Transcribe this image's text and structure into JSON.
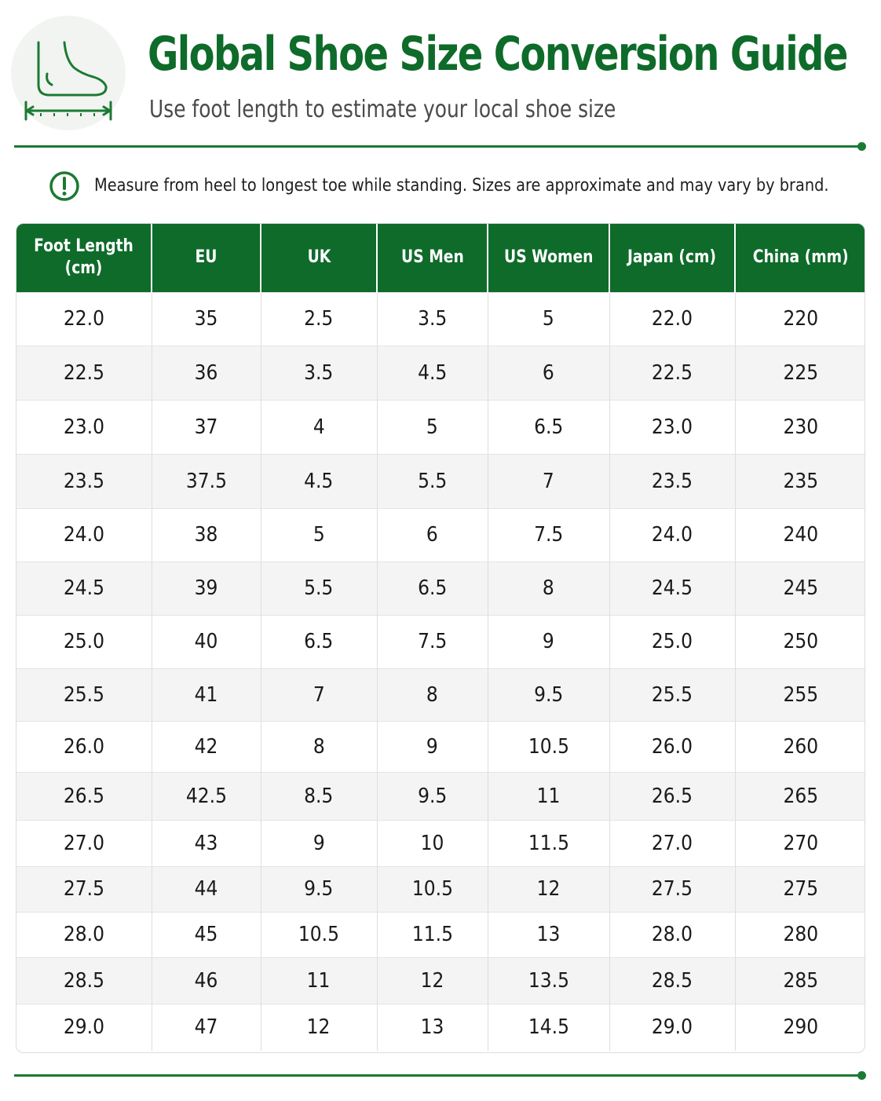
{
  "header": {
    "title": "Global Shoe Size Conversion Guide",
    "subtitle": "Use foot length to estimate your local shoe size",
    "logo_icon": "foot-measure-icon"
  },
  "note": {
    "icon": "info-exclamation-icon",
    "text": "Measure from heel to longest toe while standing. Sizes are approximate and may vary by brand."
  },
  "colors": {
    "brand_green": "#0e6b2a",
    "row_stripe": "#f4f4f4"
  },
  "table": {
    "headers": [
      "Foot Length (cm)",
      "EU",
      "UK",
      "US Men",
      "US Women",
      "Japan (cm)",
      "China (mm)"
    ],
    "rows": [
      [
        "22.0",
        "35",
        "2.5",
        "3.5",
        "5",
        "22.0",
        "220"
      ],
      [
        "22.5",
        "36",
        "3.5",
        "4.5",
        "6",
        "22.5",
        "225"
      ],
      [
        "23.0",
        "37",
        "4",
        "5",
        "6.5",
        "23.0",
        "230"
      ],
      [
        "23.5",
        "37.5",
        "4.5",
        "5.5",
        "7",
        "23.5",
        "235"
      ],
      [
        "24.0",
        "38",
        "5",
        "6",
        "7.5",
        "24.0",
        "240"
      ],
      [
        "24.5",
        "39",
        "5.5",
        "6.5",
        "8",
        "24.5",
        "245"
      ],
      [
        "25.0",
        "40",
        "6.5",
        "7.5",
        "9",
        "25.0",
        "250"
      ],
      [
        "25.5",
        "41",
        "7",
        "8",
        "9.5",
        "25.5",
        "255"
      ],
      [
        "26.0",
        "42",
        "8",
        "9",
        "10.5",
        "26.0",
        "260"
      ],
      [
        "26.5",
        "42.5",
        "8.5",
        "9.5",
        "11",
        "26.5",
        "265"
      ],
      [
        "27.0",
        "43",
        "9",
        "10",
        "11.5",
        "27.0",
        "270"
      ],
      [
        "27.5",
        "44",
        "9.5",
        "10.5",
        "12",
        "27.5",
        "275"
      ],
      [
        "28.0",
        "45",
        "10.5",
        "11.5",
        "13",
        "28.0",
        "280"
      ],
      [
        "28.5",
        "46",
        "11",
        "12",
        "13.5",
        "28.5",
        "285"
      ],
      [
        "29.0",
        "47",
        "12",
        "13",
        "14.5",
        "29.0",
        "290"
      ]
    ]
  }
}
